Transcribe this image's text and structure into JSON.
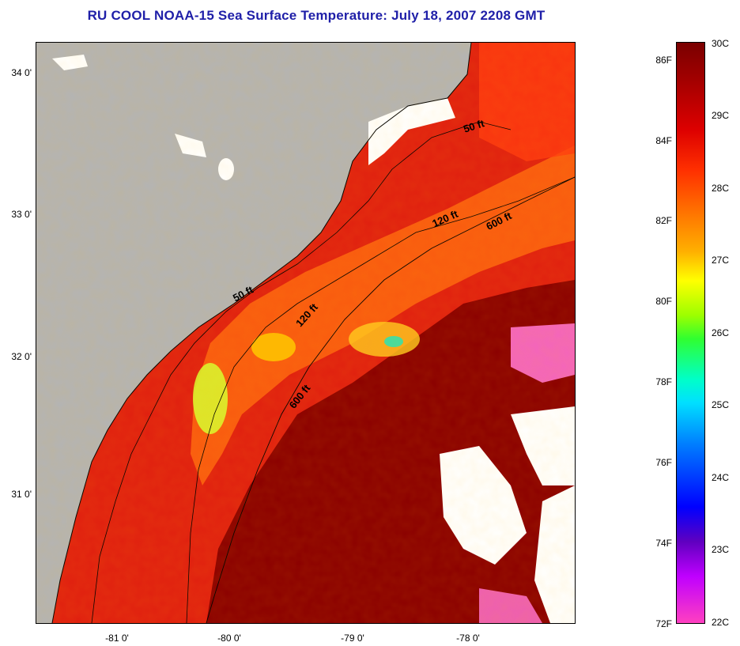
{
  "title": "RU COOL  NOAA-15  Sea Surface Temperature:  July 18, 2007 2208 GMT",
  "map": {
    "latitude_labels": [
      "34 0'",
      "33 0'",
      "32 0'",
      "31 0'"
    ],
    "longitude_labels": [
      "-81 0'",
      "-80 0'",
      "-79 0'",
      "-78 0'"
    ],
    "isobath_labels": [
      "50 ft",
      "120 ft",
      "600 ft",
      "50 ft",
      "120 ft",
      "600 ft"
    ],
    "colors": {
      "land": "#b4b4b4",
      "ocean_warm": "#8b0000",
      "ocean_shelf": "#e02010",
      "cloud": "#ffffff"
    }
  },
  "colorbar": {
    "fahrenheit_labels": [
      "86F",
      "84F",
      "82F",
      "80F",
      "78F",
      "76F",
      "74F",
      "72F"
    ],
    "celsius_labels": [
      "30C",
      "29C",
      "28C",
      "27C",
      "26C",
      "25C",
      "24C",
      "23C",
      "22C"
    ]
  }
}
